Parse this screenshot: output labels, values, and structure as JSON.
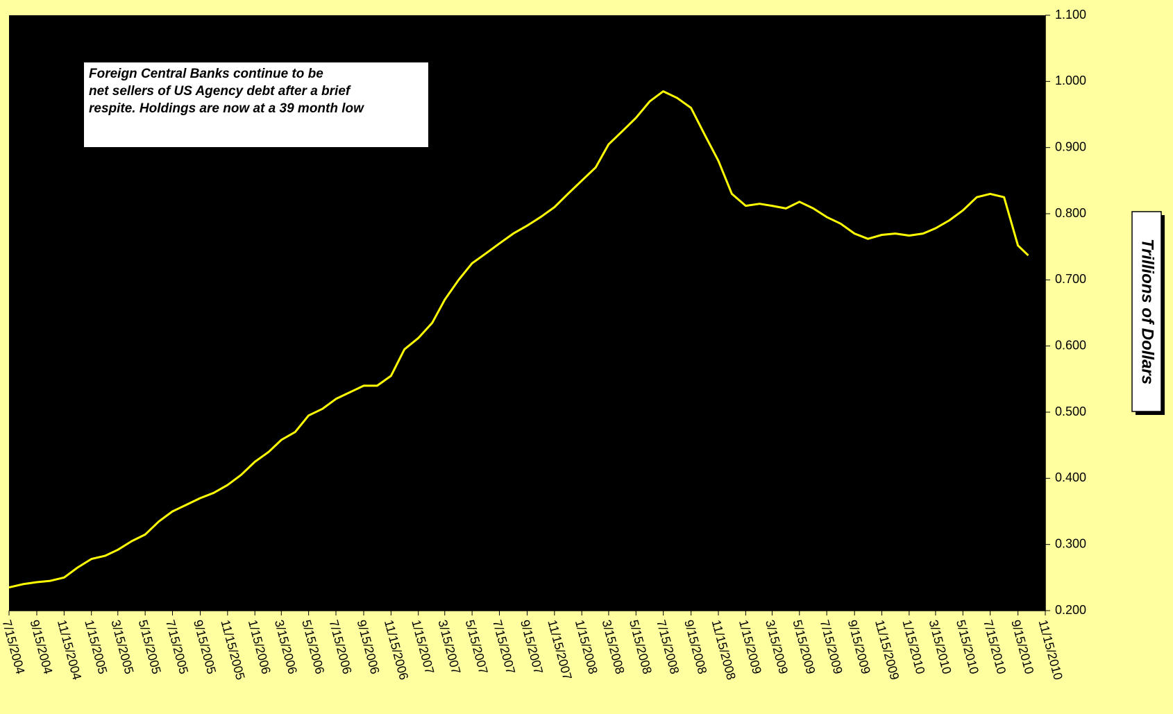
{
  "chart_data": {
    "type": "line",
    "annotation": [
      "Foreign Central Banks continue to be",
      "net sellers of US Agency debt after a brief",
      "respite. Holdings are now at a 39 month low"
    ],
    "y_axis_label": "Trillions of Dollars",
    "color": "#ffff00",
    "x": [
      "7/15/2004",
      "8/15/2004",
      "9/15/2004",
      "10/15/2004",
      "11/15/2004",
      "12/15/2004",
      "1/15/2005",
      "2/15/2005",
      "3/15/2005",
      "4/15/2005",
      "5/15/2005",
      "6/15/2005",
      "7/15/2005",
      "8/15/2005",
      "9/15/2005",
      "10/15/2005",
      "11/15/2005",
      "12/15/2005",
      "1/15/2006",
      "2/15/2006",
      "3/15/2006",
      "4/15/2006",
      "5/15/2006",
      "6/15/2006",
      "7/15/2006",
      "8/15/2006",
      "9/15/2006",
      "10/15/2006",
      "11/15/2006",
      "12/15/2006",
      "1/15/2007",
      "2/15/2007",
      "3/15/2007",
      "4/15/2007",
      "5/15/2007",
      "6/15/2007",
      "7/15/2007",
      "8/15/2007",
      "9/15/2007",
      "10/15/2007",
      "11/15/2007",
      "12/15/2007",
      "1/15/2008",
      "2/15/2008",
      "3/15/2008",
      "4/15/2008",
      "5/15/2008",
      "6/15/2008",
      "7/15/2008",
      "8/15/2008",
      "9/15/2008",
      "10/15/2008",
      "11/15/2008",
      "12/15/2008",
      "1/15/2009",
      "2/15/2009",
      "3/15/2009",
      "4/15/2009",
      "5/15/2009",
      "6/15/2009",
      "7/15/2009",
      "8/15/2009",
      "9/15/2009",
      "10/15/2009",
      "11/15/2009",
      "12/15/2009",
      "1/15/2010",
      "2/15/2010",
      "3/15/2010",
      "4/15/2010",
      "5/15/2010",
      "6/15/2010",
      "7/15/2010",
      "8/15/2010",
      "9/15/2010",
      "10/8/2010"
    ],
    "values": [
      0.235,
      0.24,
      0.243,
      0.245,
      0.25,
      0.265,
      0.278,
      0.283,
      0.292,
      0.305,
      0.315,
      0.335,
      0.35,
      0.36,
      0.37,
      0.378,
      0.39,
      0.405,
      0.425,
      0.44,
      0.458,
      0.47,
      0.495,
      0.505,
      0.52,
      0.53,
      0.54,
      0.54,
      0.555,
      0.595,
      0.612,
      0.635,
      0.67,
      0.7,
      0.725,
      0.74,
      0.755,
      0.77,
      0.782,
      0.795,
      0.81,
      0.83,
      0.85,
      0.87,
      0.905,
      0.925,
      0.945,
      0.97,
      0.985,
      0.975,
      0.96,
      0.92,
      0.88,
      0.83,
      0.812,
      0.815,
      0.812,
      0.808,
      0.818,
      0.808,
      0.795,
      0.785,
      0.77,
      0.762,
      0.768,
      0.77,
      0.767,
      0.77,
      0.778,
      0.79,
      0.805,
      0.825,
      0.83,
      0.825,
      0.752,
      0.737
    ],
    "xlim": [
      "7/15/2004",
      "11/15/2010"
    ],
    "xticks": [
      "7/15/2004",
      "9/15/2004",
      "11/15/2004",
      "1/15/2005",
      "3/15/2005",
      "5/15/2005",
      "7/15/2005",
      "9/15/2005",
      "11/15/2005",
      "1/15/2006",
      "3/15/2006",
      "5/15/2006",
      "7/15/2006",
      "9/15/2006",
      "11/15/2006",
      "1/15/2007",
      "3/15/2007",
      "5/15/2007",
      "7/15/2007",
      "9/15/2007",
      "11/15/2007",
      "1/15/2008",
      "3/15/2008",
      "5/15/2008",
      "7/15/2008",
      "9/15/2008",
      "11/15/2008",
      "1/15/2009",
      "3/15/2009",
      "5/15/2009",
      "7/15/2009",
      "9/15/2009",
      "11/15/2009",
      "1/15/2010",
      "3/15/2010",
      "5/15/2010",
      "7/15/2010",
      "9/15/2010",
      "11/15/2010"
    ],
    "ylim": [
      0.2,
      1.1
    ],
    "yticks": [
      {
        "value": 0.2,
        "label": "0.200"
      },
      {
        "value": 0.3,
        "label": "0.300"
      },
      {
        "value": 0.4,
        "label": "0.400"
      },
      {
        "value": 0.5,
        "label": "0.500"
      },
      {
        "value": 0.6,
        "label": "0.600"
      },
      {
        "value": 0.7,
        "label": "0.700"
      },
      {
        "value": 0.8,
        "label": "0.800"
      },
      {
        "value": 0.9,
        "label": "0.900"
      },
      {
        "value": 1.0,
        "label": "1.000"
      },
      {
        "value": 1.1,
        "label": "1.100"
      }
    ]
  }
}
